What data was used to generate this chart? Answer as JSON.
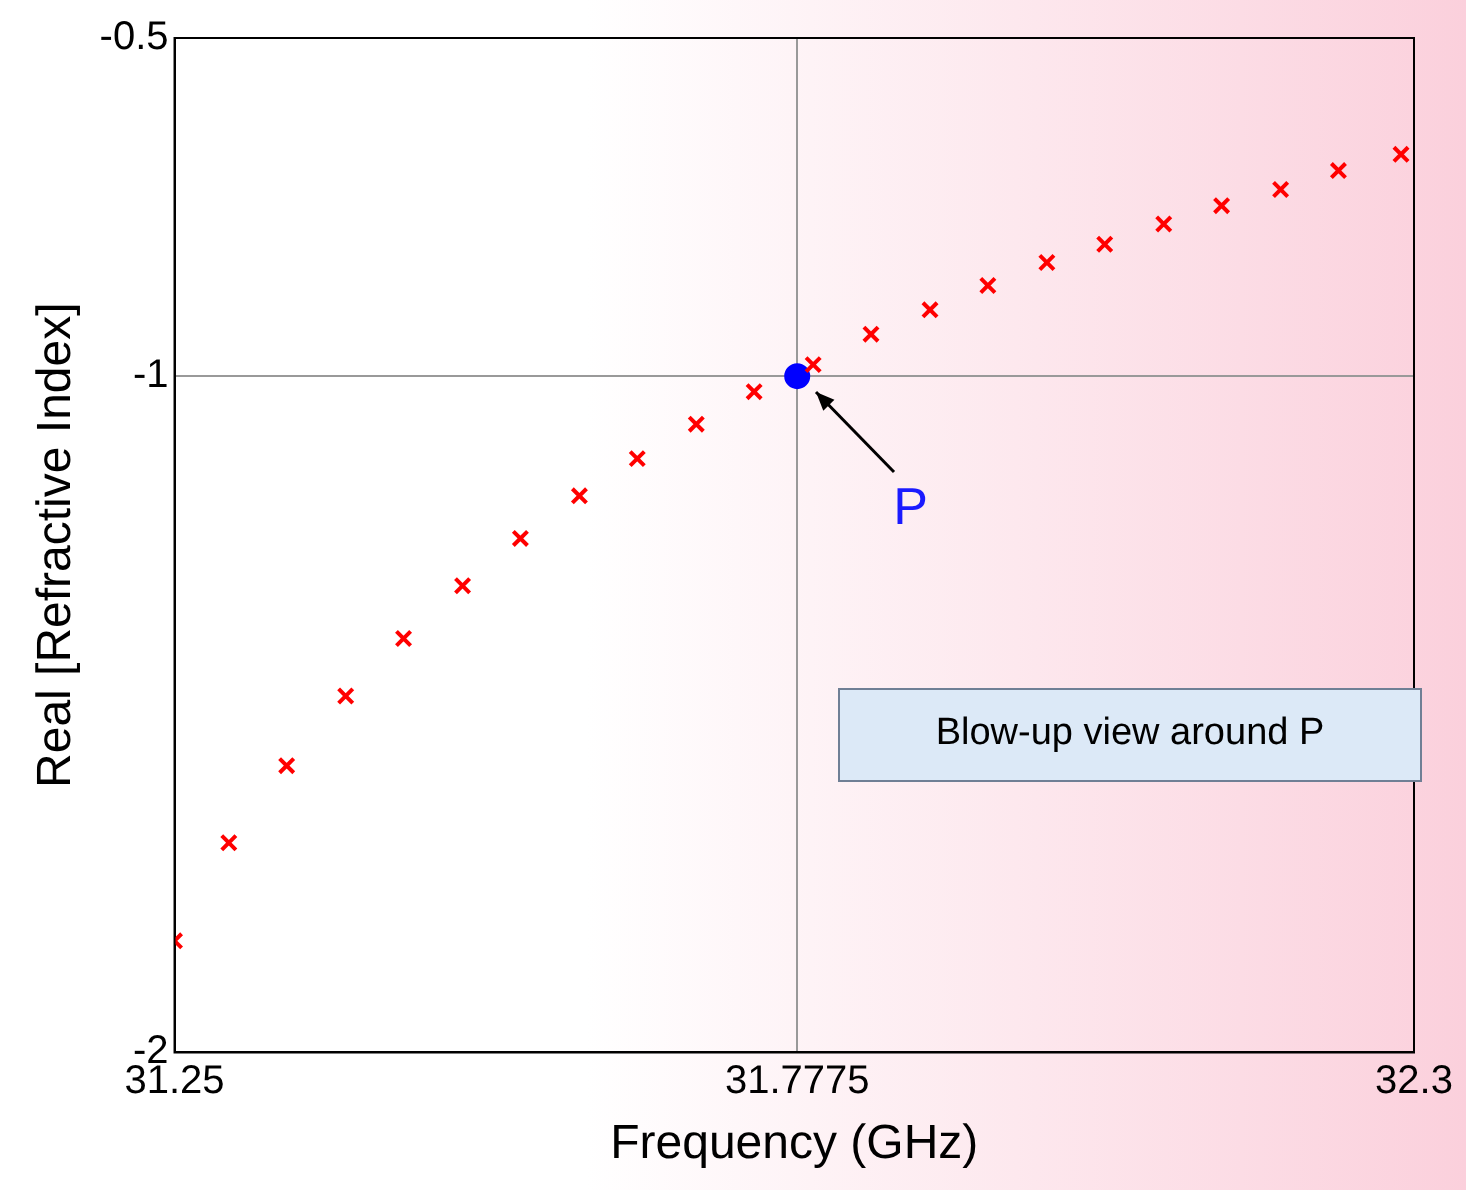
{
  "chart_data": {
    "type": "scatter",
    "xlabel": "Frequency (GHz)",
    "ylabel": "Real [Refractive Index]",
    "xlim": [
      31.25,
      32.3
    ],
    "xticks": [
      31.25,
      31.7775,
      32.3
    ],
    "ylim": [
      -2,
      -0.5
    ],
    "yticks": [
      -2,
      -1,
      -0.5
    ],
    "grid": true,
    "legend": false,
    "series": [
      {
        "color": "#ff0000",
        "marker": "cross",
        "x": [
          31.25,
          31.296,
          31.345,
          31.395,
          31.444,
          31.494,
          31.543,
          31.593,
          31.642,
          31.692,
          31.741,
          31.791,
          31.84,
          31.89,
          31.939,
          31.989,
          32.038,
          32.088,
          32.137,
          32.187,
          32.236,
          32.289
        ],
        "values": [
          -1.835,
          -1.69,
          -1.576,
          -1.473,
          -1.388,
          -1.31,
          -1.24,
          -1.177,
          -1.122,
          -1.071,
          -1.023,
          -0.983,
          -0.938,
          -0.902,
          -0.866,
          -0.832,
          -0.805,
          -0.775,
          -0.748,
          -0.724,
          -0.696,
          -0.672
        ]
      },
      {
        "color": "#0000ff",
        "marker": "circle",
        "x": [
          31.7775
        ],
        "values": [
          -1
        ]
      }
    ],
    "annotations": [
      {
        "text": "P",
        "x": 31.7775,
        "y": -1
      },
      "Blow-up view around P"
    ]
  }
}
